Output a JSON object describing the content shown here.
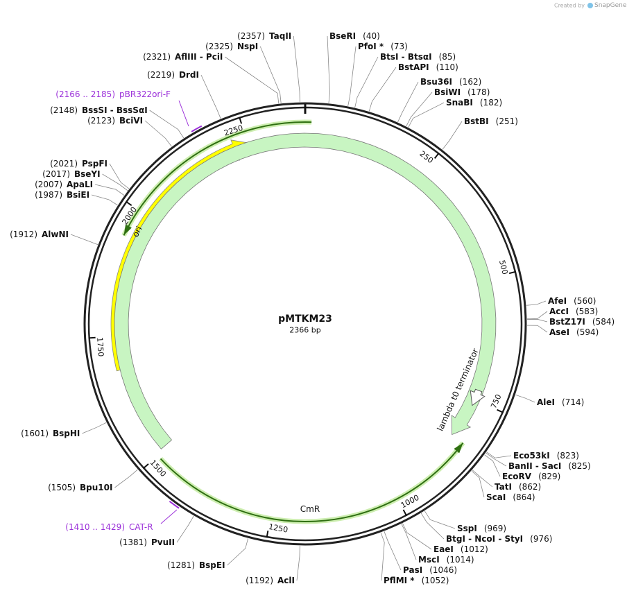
{
  "watermark": {
    "prefix": "Created by",
    "brand": "SnapGene"
  },
  "map": {
    "name": "pMTKM23",
    "length": "2366 bp",
    "ticks": [
      250,
      500,
      750,
      1000,
      1250,
      1500,
      1750,
      2000,
      2250
    ]
  },
  "features": [
    {
      "label": "ori"
    },
    {
      "label": "CmR"
    },
    {
      "label": "lambda t0 terminator"
    }
  ],
  "primers": [
    {
      "name": "pBR322ori-F",
      "site": "(2166 .. 2185)"
    },
    {
      "name": "CAT-R",
      "site": "(1410 .. 1429)"
    }
  ],
  "enzymes": [
    {
      "name": "BseRI",
      "site": "(40)"
    },
    {
      "name": "PfoI *",
      "site": "(73)"
    },
    {
      "name": "BtsI - BtsαI",
      "site": "(85)"
    },
    {
      "name": "BstAPI",
      "site": "(110)"
    },
    {
      "name": "Bsu36I",
      "site": "(162)"
    },
    {
      "name": "BsiWI",
      "site": "(178)"
    },
    {
      "name": "SnaBI",
      "site": "(182)"
    },
    {
      "name": "BstBI",
      "site": "(251)"
    },
    {
      "name": "AfeI",
      "site": "(560)"
    },
    {
      "name": "AccI",
      "site": "(583)"
    },
    {
      "name": "BstZ17I",
      "site": "(584)"
    },
    {
      "name": "AseI",
      "site": "(594)"
    },
    {
      "name": "AleI",
      "site": "(714)"
    },
    {
      "name": "Eco53kI",
      "site": "(823)"
    },
    {
      "name": "BanII - SacI",
      "site": "(825)"
    },
    {
      "name": "EcoRV",
      "site": "(829)"
    },
    {
      "name": "TatI",
      "site": "(862)"
    },
    {
      "name": "ScaI",
      "site": "(864)"
    },
    {
      "name": "SspI",
      "site": "(969)"
    },
    {
      "name": "BtgI - NcoI - StyI",
      "site": "(976)"
    },
    {
      "name": "EaeI",
      "site": "(1012)"
    },
    {
      "name": "MscI",
      "site": "(1014)"
    },
    {
      "name": "PasI",
      "site": "(1046)"
    },
    {
      "name": "PflMI *",
      "site": "(1052)"
    },
    {
      "name": "AclI",
      "site": "(1192)"
    },
    {
      "name": "BspEI",
      "site": "(1281)"
    },
    {
      "name": "PvuII",
      "site": "(1381)"
    },
    {
      "name": "Bpu10I",
      "site": "(1505)"
    },
    {
      "name": "BspHI",
      "site": "(1601)"
    },
    {
      "name": "AlwNI",
      "site": "(1912)"
    },
    {
      "name": "BsiEI",
      "site": "(1987)"
    },
    {
      "name": "ApaLI",
      "site": "(2007)"
    },
    {
      "name": "BseYI",
      "site": "(2017)"
    },
    {
      "name": "PspFI",
      "site": "(2021)"
    },
    {
      "name": "BciVI",
      "site": "(2123)"
    },
    {
      "name": "BssSI - BssSαI",
      "site": "(2148)"
    },
    {
      "name": "DrdI",
      "site": "(2219)"
    },
    {
      "name": "AflIII - PciI",
      "site": "(2321)"
    },
    {
      "name": "NspI",
      "site": "(2325)"
    },
    {
      "name": "TaqII",
      "site": "(2357)"
    }
  ]
}
